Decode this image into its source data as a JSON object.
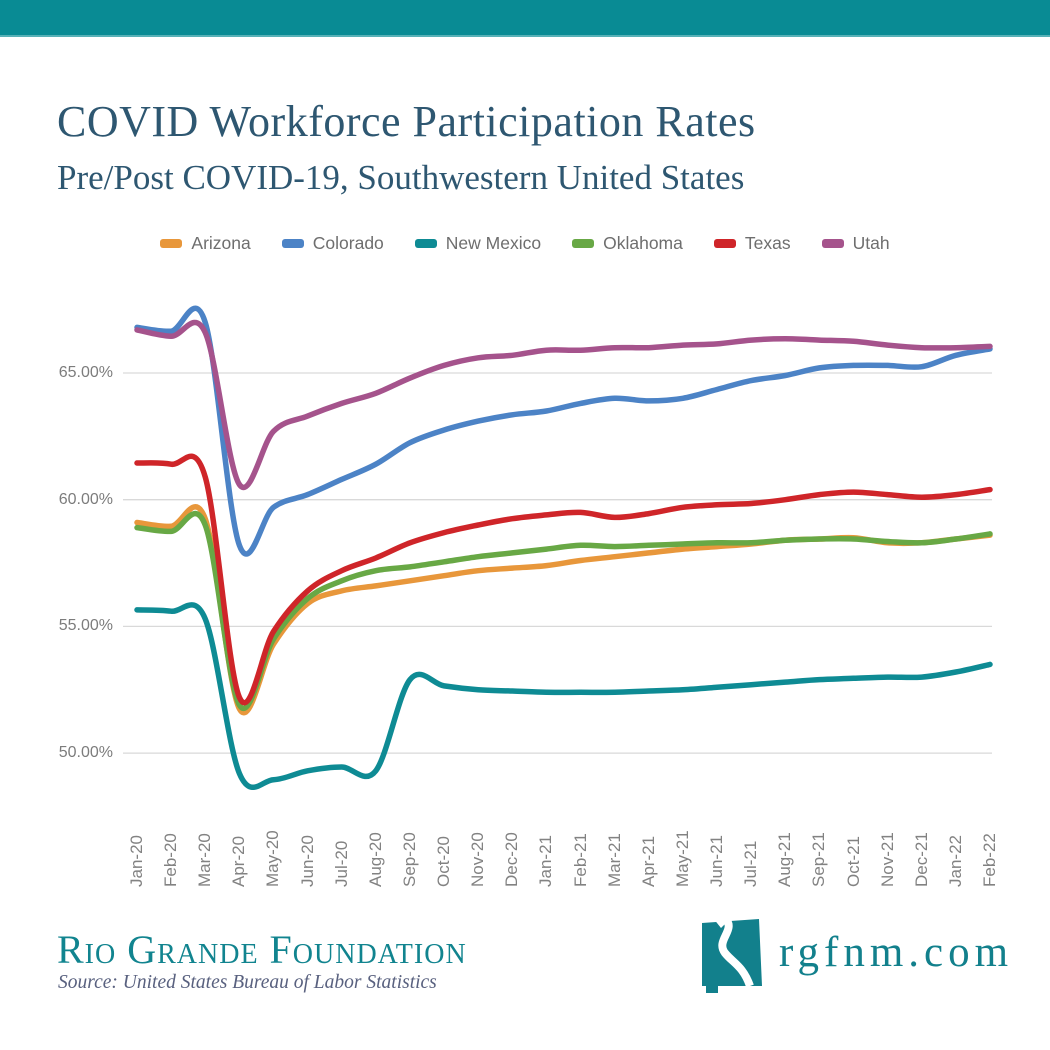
{
  "header": {
    "bar_color": "#098b94"
  },
  "title": "COVID Workforce Participation Rates",
  "subtitle": "Pre/Post COVID-19, Southwestern United States",
  "chart_data": {
    "type": "line",
    "x": [
      "Jan-20",
      "Feb-20",
      "Mar-20",
      "Apr-20",
      "May-20",
      "Jun-20",
      "Jul-20",
      "Aug-20",
      "Sep-20",
      "Oct-20",
      "Nov-20",
      "Dec-20",
      "Jan-21",
      "Feb-21",
      "Mar-21",
      "Apr-21",
      "May-21",
      "Jun-21",
      "Jul-21",
      "Aug-21",
      "Sep-21",
      "Oct-21",
      "Nov-21",
      "Dec-21",
      "Jan-22",
      "Feb-22"
    ],
    "series": [
      {
        "name": "Arizona",
        "color": "#e8973b",
        "values": [
          59.1,
          58.95,
          59.25,
          51.75,
          54.3,
          55.9,
          56.4,
          56.6,
          56.8,
          57.0,
          57.2,
          57.3,
          57.4,
          57.6,
          57.75,
          57.9,
          58.05,
          58.15,
          58.25,
          58.4,
          58.45,
          58.5,
          58.3,
          58.3,
          58.45,
          58.6
        ]
      },
      {
        "name": "Colorado",
        "color": "#4c83c6",
        "values": [
          66.8,
          66.65,
          67.0,
          58.2,
          59.7,
          60.2,
          60.8,
          61.4,
          62.25,
          62.75,
          63.1,
          63.35,
          63.5,
          63.8,
          64.0,
          63.9,
          64.0,
          64.35,
          64.7,
          64.9,
          65.2,
          65.3,
          65.3,
          65.25,
          65.7,
          65.95
        ]
      },
      {
        "name": "New Mexico",
        "color": "#0e8b94",
        "values": [
          55.65,
          55.6,
          55.3,
          49.2,
          48.95,
          49.3,
          49.45,
          49.3,
          52.9,
          52.65,
          52.5,
          52.45,
          52.4,
          52.4,
          52.4,
          52.45,
          52.5,
          52.6,
          52.7,
          52.8,
          52.9,
          52.95,
          53.0,
          53.0,
          53.2,
          53.5
        ]
      },
      {
        "name": "Oklahoma",
        "color": "#68a845",
        "values": [
          58.9,
          58.75,
          59.0,
          51.9,
          54.5,
          56.1,
          56.8,
          57.2,
          57.35,
          57.55,
          57.75,
          57.9,
          58.05,
          58.2,
          58.15,
          58.2,
          58.25,
          58.3,
          58.3,
          58.4,
          58.45,
          58.45,
          58.35,
          58.3,
          58.45,
          58.65
        ]
      },
      {
        "name": "Texas",
        "color": "#cf2529",
        "values": [
          61.45,
          61.4,
          60.9,
          52.2,
          54.8,
          56.4,
          57.2,
          57.7,
          58.3,
          58.7,
          59.0,
          59.25,
          59.4,
          59.5,
          59.3,
          59.45,
          59.7,
          59.8,
          59.85,
          60.0,
          60.2,
          60.3,
          60.2,
          60.1,
          60.2,
          60.4
        ]
      },
      {
        "name": "Utah",
        "color": "#a5538c",
        "values": [
          66.7,
          66.45,
          66.6,
          60.6,
          62.7,
          63.3,
          63.8,
          64.2,
          64.8,
          65.3,
          65.6,
          65.7,
          65.9,
          65.9,
          66.0,
          66.0,
          66.1,
          66.15,
          66.3,
          66.35,
          66.3,
          66.25,
          66.1,
          66.0,
          66.0,
          66.05
        ]
      }
    ],
    "yticks": [
      "65.00%",
      "60.00%",
      "55.00%",
      "50.00%"
    ],
    "ytick_values": [
      65,
      60,
      55,
      50
    ],
    "ylim": [
      48.3,
      67.6
    ],
    "grid": true,
    "legend_position": "top",
    "grid_color": "#d9d9d9",
    "axis_text_color": "#7c7c7c"
  },
  "footer": {
    "org": "Rio Grande Foundation",
    "source": "Source: United States Bureau of Labor Statistics",
    "site": "rgfnm.com"
  }
}
